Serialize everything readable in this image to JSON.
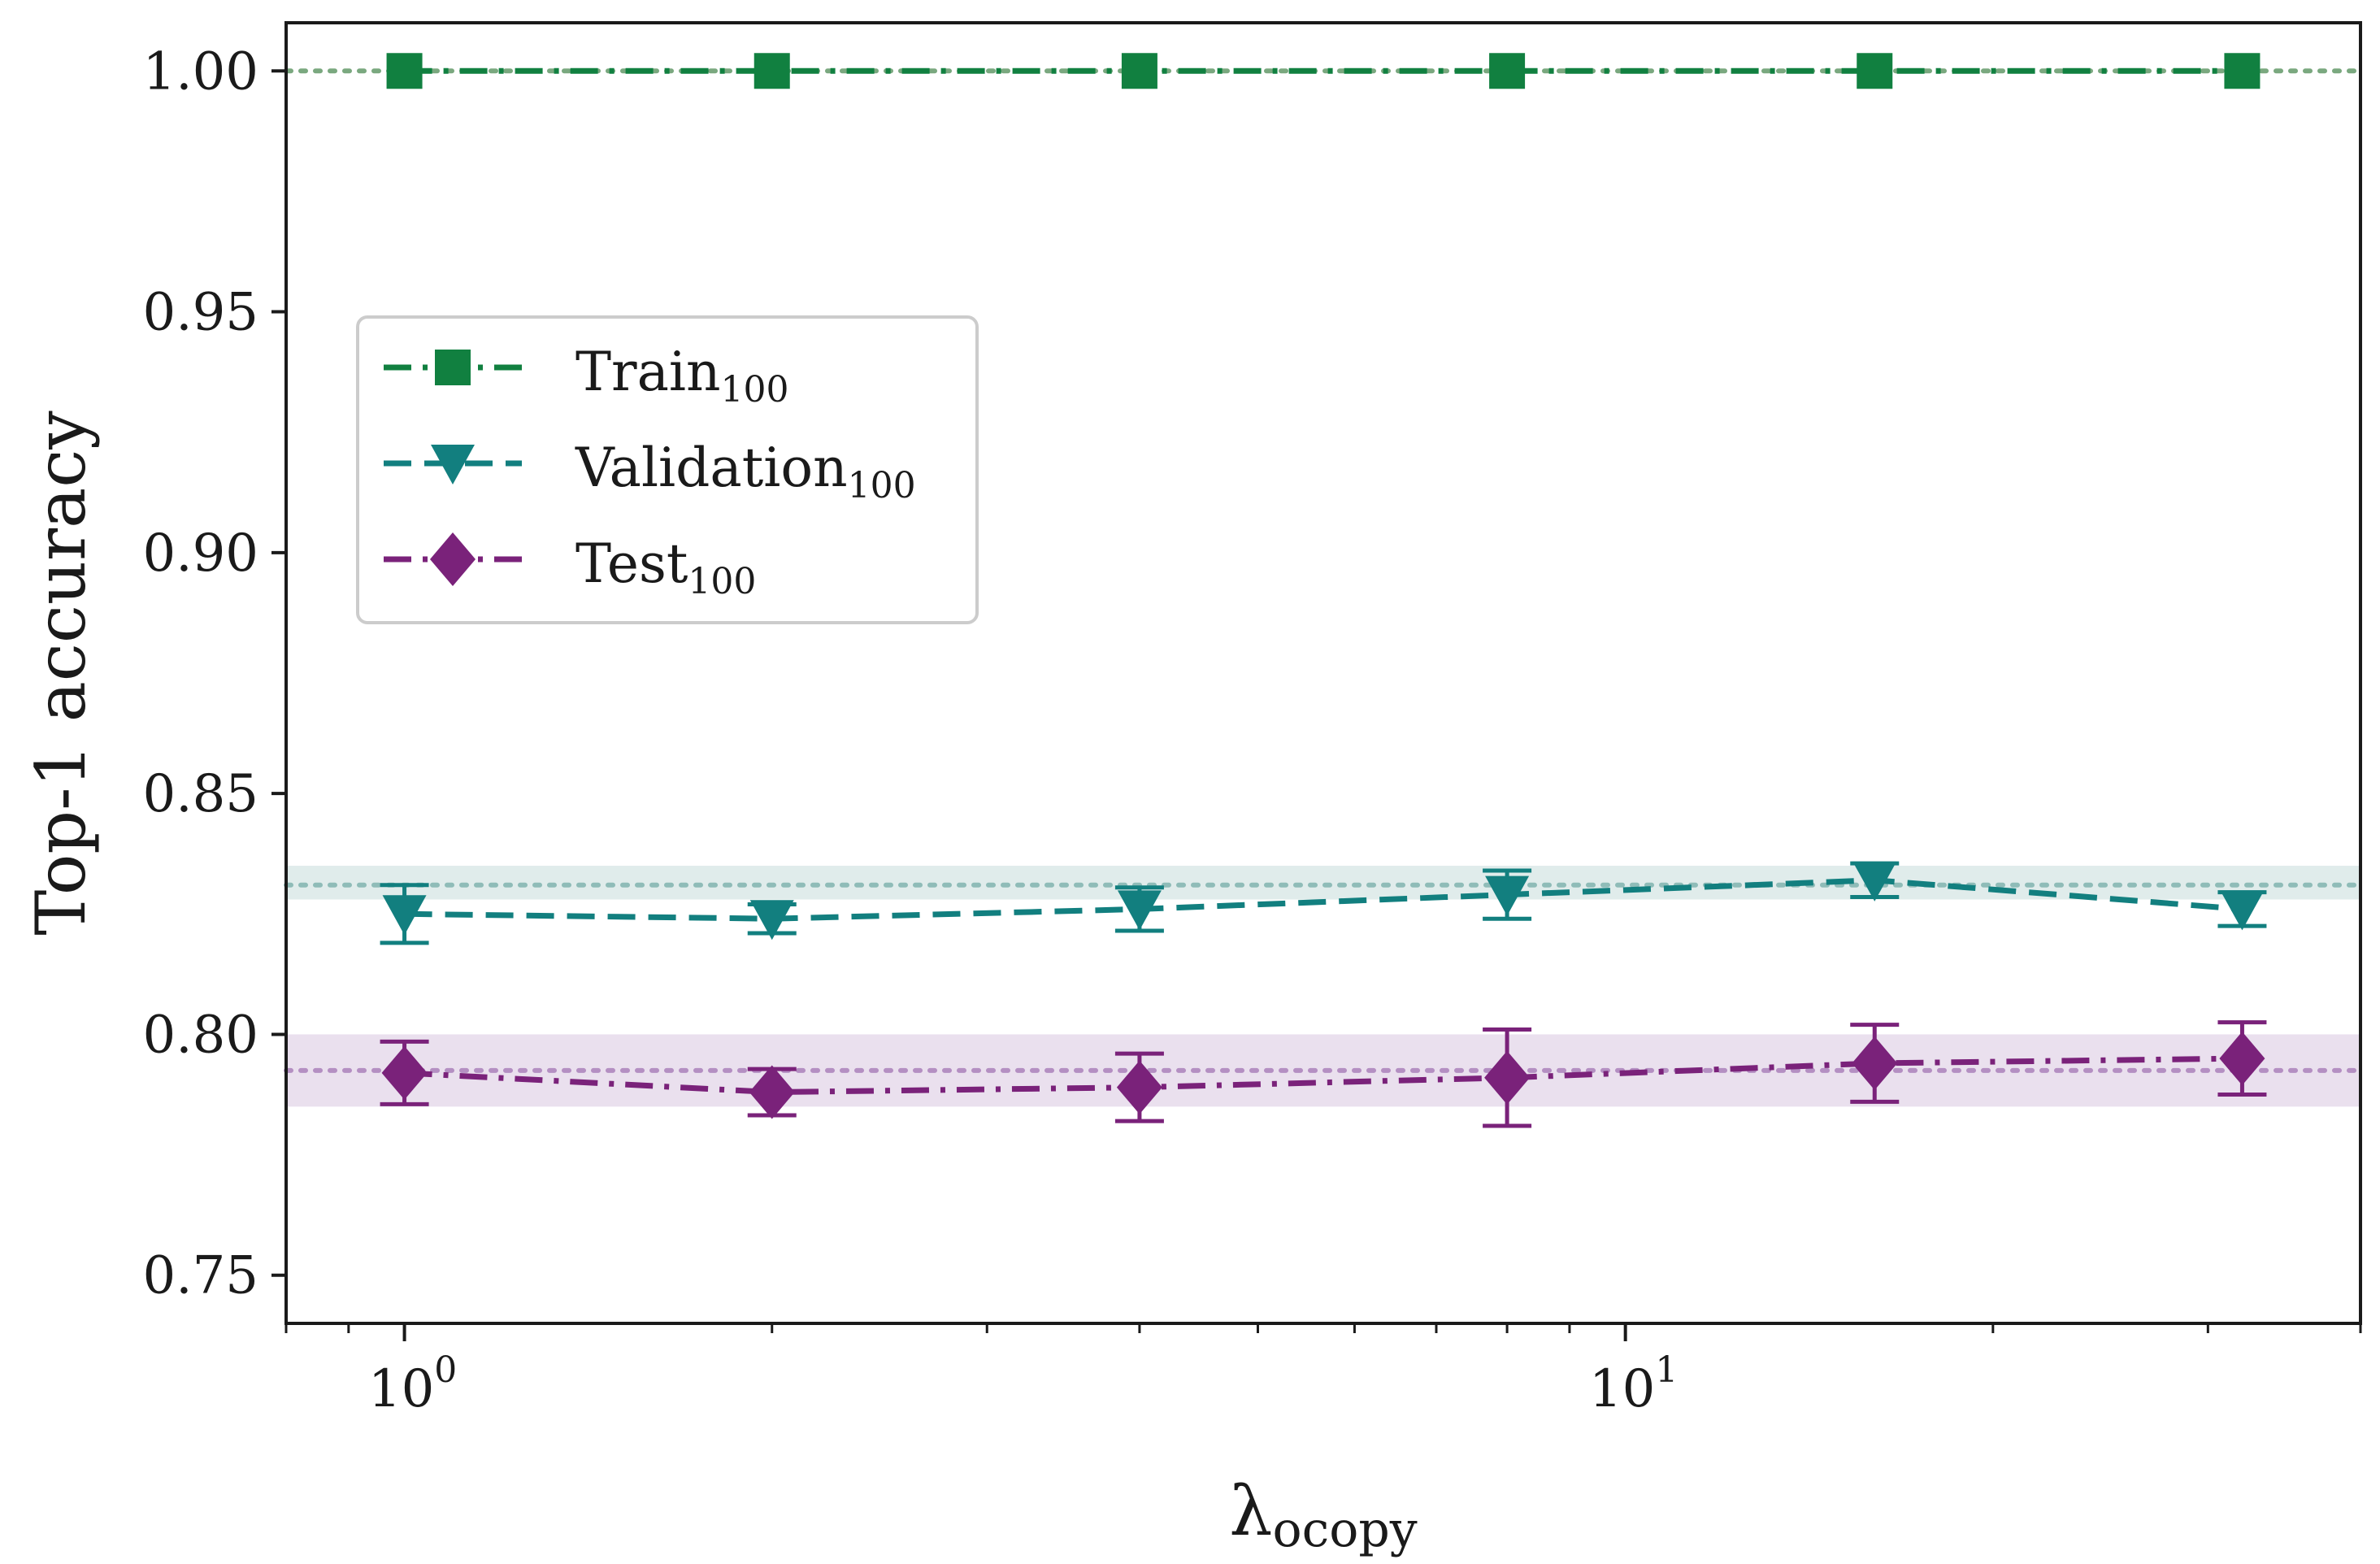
{
  "chart_data": {
    "type": "line",
    "xscale": "log",
    "xlim": [
      0.8,
      40
    ],
    "ylim": [
      0.74,
      1.01
    ],
    "grid": false,
    "legend_position": "center-left",
    "xlabel": {
      "main": "λ",
      "sub": "ocopy"
    },
    "ylabel": "Top-1 accuracy",
    "x": [
      1,
      2,
      4,
      8,
      16,
      32
    ],
    "x_ticks": [
      {
        "value": 1,
        "base": "10",
        "exp": "0"
      },
      {
        "value": 10,
        "base": "10",
        "exp": "1"
      }
    ],
    "y_ticks": [
      {
        "value": 0.75,
        "label": "0.75"
      },
      {
        "value": 0.8,
        "label": "0.80"
      },
      {
        "value": 0.85,
        "label": "0.85"
      },
      {
        "value": 0.9,
        "label": "0.90"
      },
      {
        "value": 0.95,
        "label": "0.95"
      },
      {
        "value": 1.0,
        "label": "1.00"
      }
    ],
    "series": [
      {
        "name": "Train",
        "sub": "100",
        "color": "#118040",
        "marker": "square",
        "linestyle": "dash-dot",
        "values": [
          1.0,
          1.0,
          1.0,
          1.0,
          1.0,
          1.0
        ],
        "err": [
          0,
          0,
          0,
          0,
          0,
          0
        ],
        "baseline": 1.0,
        "baseline_band": [
          1.0,
          1.0
        ],
        "baseline_color": "#7aa87f"
      },
      {
        "name": "Validation",
        "sub": "100",
        "color": "#127f7f",
        "marker": "triangle-down",
        "linestyle": "dashed",
        "values": [
          0.825,
          0.824,
          0.826,
          0.829,
          0.832,
          0.826
        ],
        "err": [
          0.006,
          0.003,
          0.0045,
          0.005,
          0.0035,
          0.0035
        ],
        "baseline": 0.831,
        "baseline_band": [
          0.828,
          0.835
        ],
        "baseline_color": "#8fbcb8"
      },
      {
        "name": "Test",
        "sub": "100",
        "color": "#7a227a",
        "marker": "diamond",
        "linestyle": "dash-dot",
        "values": [
          0.792,
          0.788,
          0.789,
          0.791,
          0.794,
          0.795
        ],
        "err": [
          0.0065,
          0.0048,
          0.007,
          0.01,
          0.008,
          0.0075
        ],
        "baseline": 0.7925,
        "baseline_band": [
          0.785,
          0.8
        ],
        "baseline_color": "#b48fc2"
      }
    ]
  }
}
